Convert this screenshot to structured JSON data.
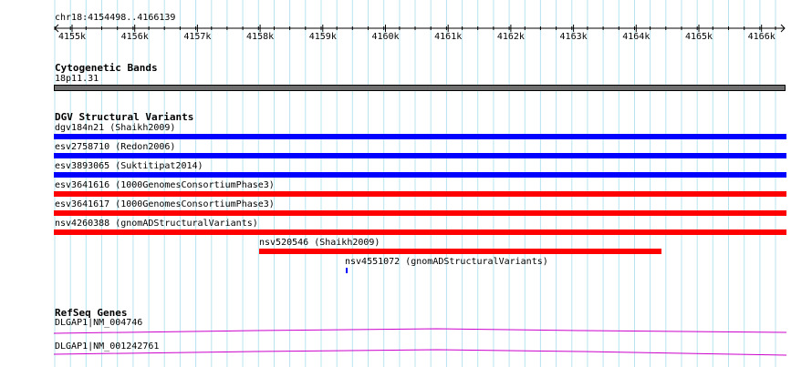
{
  "ruler": {
    "position": "chr18:4154498..4166139",
    "ticks": [
      "4155k",
      "4156k",
      "4157k",
      "4158k",
      "4159k",
      "4160k",
      "4161k",
      "4162k",
      "4163k",
      "4164k",
      "4165k",
      "4166k"
    ]
  },
  "cytobands": {
    "title": "Cytogenetic Bands",
    "band_label": "18p11.31"
  },
  "dgv": {
    "title": "DGV Structural Variants",
    "features": [
      {
        "label": "dgv184n21 (Shaikh2009)",
        "color": "#0000ff"
      },
      {
        "label": "esv2758710 (Redon2006)",
        "color": "#0000ff"
      },
      {
        "label": "esv3893065 (Suktitipat2014)",
        "color": "#0000ff"
      },
      {
        "label": "esv3641616 (1000GenomesConsortiumPhase3)",
        "color": "#ff0000"
      },
      {
        "label": "esv3641617 (1000GenomesConsortiumPhase3)",
        "color": "#ff0000"
      },
      {
        "label": "nsv4260388 (gnomADStructuralVariants)",
        "color": "#ff0000"
      },
      {
        "label": "nsv520546 (Shaikh2009)",
        "color": "#ff0000"
      },
      {
        "label": "nsv4551072 (gnomADStructuralVariants)",
        "color": "#0000ff"
      }
    ]
  },
  "refseq": {
    "title": "RefSeq Genes",
    "genes": [
      {
        "label": "DLGAP1|NM_004746",
        "color": "#cc00cc"
      },
      {
        "label": "DLGAP1|NM_001242761",
        "color": "#cc00cc"
      }
    ]
  }
}
